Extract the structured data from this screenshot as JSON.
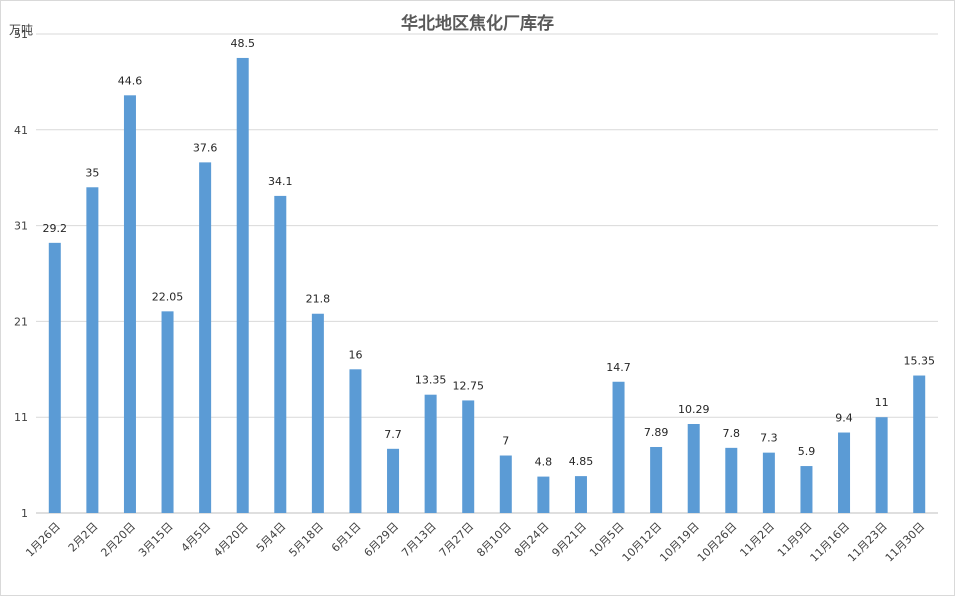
{
  "chart_data": {
    "type": "bar",
    "title": "华北地区焦化厂库存",
    "ylabel": "万吨",
    "xlabel": "",
    "ylim": [
      1,
      51
    ],
    "yticks": [
      1,
      11,
      21,
      31,
      41,
      51
    ],
    "grid": true,
    "legend": "none",
    "bar_color": "#5b9bd5",
    "categories": [
      "1月26日",
      "2月2日",
      "2月20日",
      "3月15日",
      "4月5日",
      "4月20日",
      "5月4日",
      "5月18日",
      "6月1日",
      "6月29日",
      "7月13日",
      "7月27日",
      "8月10日",
      "8月24日",
      "9月21日",
      "10月5日",
      "10月12日",
      "10月19日",
      "10月26日",
      "11月2日",
      "11月9日",
      "11月16日",
      "11月23日",
      "11月30日"
    ],
    "values": [
      29.2,
      35,
      44.6,
      22.05,
      37.6,
      48.5,
      34.1,
      21.8,
      16,
      7.7,
      13.35,
      12.75,
      7,
      4.8,
      4.85,
      14.7,
      7.89,
      10.29,
      7.8,
      7.3,
      5.9,
      9.4,
      11,
      15.35
    ],
    "value_labels": [
      "29.2",
      "35",
      "44.6",
      "22.05",
      "37.6",
      "48.5",
      "34.1",
      "21.8",
      "16",
      "7.7",
      "13.35",
      "12.75",
      "7",
      "4.8",
      "4.85",
      "14.7",
      "7.89",
      "10.29",
      "7.8",
      "7.3",
      "5.9",
      "9.4",
      "11",
      "15.35"
    ]
  }
}
